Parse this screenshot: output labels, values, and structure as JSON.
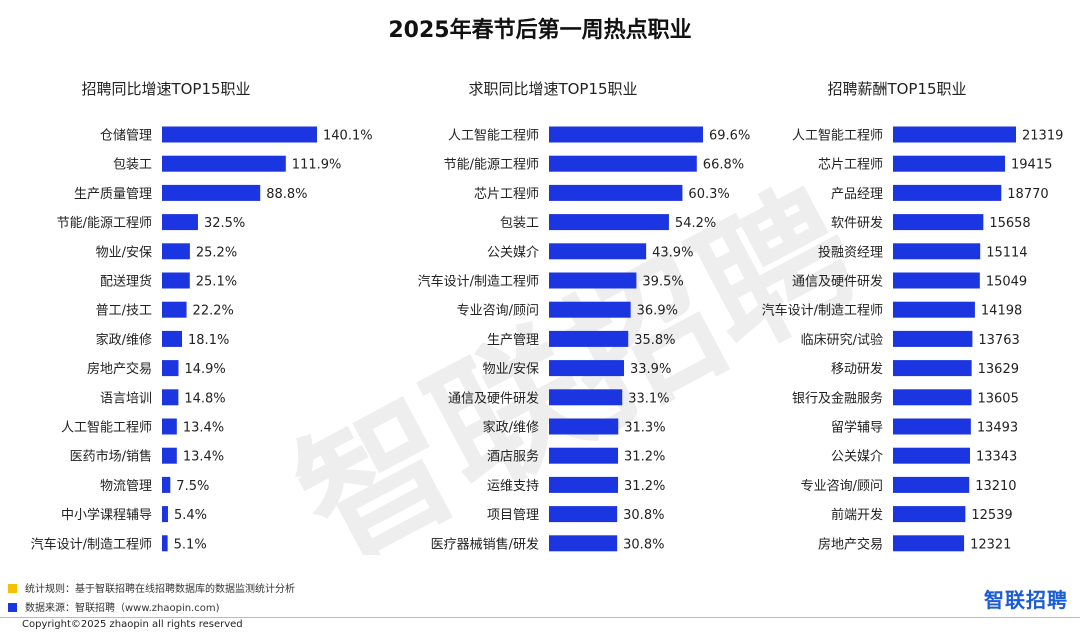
{
  "title": "2025年春节后第一周热点职业",
  "watermark": "智联招聘",
  "logo": "智联招聘",
  "notes": {
    "rule": "统计规则：基于智联招聘在线招聘数据库的数据监测统计分析",
    "source": "数据来源：智联招聘（www.zhaopin.com)"
  },
  "colors": {
    "bar": "#1b35e0",
    "rule_square": "#f5c000",
    "source_square": "#1b35e0",
    "logo": "#1a5bd8"
  },
  "copyright": "Copyright©2025 zhaopin all rights reserved",
  "chart_data": [
    {
      "type": "bar",
      "orientation": "horizontal",
      "title": "招聘同比增速TOP15职业",
      "xlim": [
        0,
        150
      ],
      "value_format": "percent",
      "categories": [
        "仓储管理",
        "包装工",
        "生产质量管理",
        "节能/能源工程师",
        "物业/安保",
        "配送理货",
        "普工/技工",
        "家政/维修",
        "房地产交易",
        "语言培训",
        "人工智能工程师",
        "医药市场/销售",
        "物流管理",
        "中小学课程辅导",
        "汽车设计/制造工程师"
      ],
      "values": [
        140.1,
        111.9,
        88.8,
        32.5,
        25.2,
        25.1,
        22.2,
        18.1,
        14.9,
        14.8,
        13.4,
        13.4,
        7.5,
        5.4,
        5.1
      ],
      "labels": [
        "140.1%",
        "111.9%",
        "88.8%",
        "32.5%",
        "25.2%",
        "25.1%",
        "22.2%",
        "18.1%",
        "14.9%",
        "14.8%",
        "13.4%",
        "13.4%",
        "7.5%",
        "5.4%",
        "5.1%"
      ]
    },
    {
      "type": "bar",
      "orientation": "horizontal",
      "title": "求职同比增速TOP15职业",
      "xlim": [
        0,
        75
      ],
      "value_format": "percent",
      "categories": [
        "人工智能工程师",
        "节能/能源工程师",
        "芯片工程师",
        "包装工",
        "公关媒介",
        "汽车设计/制造工程师",
        "专业咨询/顾问",
        "生产管理",
        "物业/安保",
        "通信及硬件研发",
        "家政/维修",
        "酒店服务",
        "运维支持",
        "项目管理",
        "医疗器械销售/研发"
      ],
      "values": [
        69.6,
        66.8,
        60.3,
        54.2,
        43.9,
        39.5,
        36.9,
        35.8,
        33.9,
        33.1,
        31.3,
        31.2,
        31.2,
        30.8,
        30.8
      ],
      "labels": [
        "69.6%",
        "66.8%",
        "60.3%",
        "54.2%",
        "43.9%",
        "39.5%",
        "36.9%",
        "35.8%",
        "33.9%",
        "33.1%",
        "31.3%",
        "31.2%",
        "31.2%",
        "30.8%",
        "30.8%"
      ]
    },
    {
      "type": "bar",
      "orientation": "horizontal",
      "title": "招聘薪酬TOP15职业",
      "xlim": [
        0,
        23000
      ],
      "value_format": "integer",
      "categories": [
        "人工智能工程师",
        "芯片工程师",
        "产品经理",
        "软件研发",
        "投融资经理",
        "通信及硬件研发",
        "汽车设计/制造工程师",
        "临床研究/试验",
        "移动研发",
        "银行及金融服务",
        "留学辅导",
        "公关媒介",
        "专业咨询/顾问",
        "前端开发",
        "房地产交易"
      ],
      "values": [
        21319,
        19415,
        18770,
        15658,
        15114,
        15049,
        14198,
        13763,
        13629,
        13605,
        13493,
        13343,
        13210,
        12539,
        12321
      ],
      "labels": [
        "21319",
        "19415",
        "18770",
        "15658",
        "15114",
        "15049",
        "14198",
        "13763",
        "13629",
        "13605",
        "13493",
        "13343",
        "13210",
        "12539",
        "12321"
      ]
    }
  ]
}
